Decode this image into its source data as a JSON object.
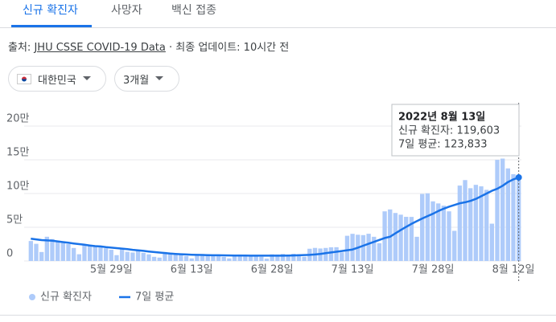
{
  "tabs": [
    "신규 확진자",
    "사망자",
    "백신 접종"
  ],
  "source": {
    "label": "출처:",
    "link": "JHU CSSE COVID-19 Data",
    "updated": "· 최종 업데이트: 10시간 전"
  },
  "filters": [
    "대한민국",
    "3개월"
  ],
  "tooltip": {
    "date": "2022년 8월 13일",
    "lines": [
      "신규 확진자: 119,603",
      "7일 평균: 123,833"
    ]
  },
  "chart_data": {
    "type": "bar_line",
    "categories": [
      null,
      null,
      null,
      null,
      null,
      null,
      null,
      null,
      null,
      null,
      null,
      null,
      null,
      null,
      null,
      "5월 29일",
      null,
      null,
      null,
      null,
      null,
      null,
      null,
      null,
      null,
      null,
      null,
      null,
      null,
      null,
      "6월 13일",
      null,
      null,
      null,
      null,
      null,
      null,
      null,
      null,
      null,
      null,
      null,
      null,
      null,
      null,
      "6월 28일",
      null,
      null,
      null,
      null,
      null,
      null,
      null,
      null,
      null,
      null,
      null,
      null,
      null,
      null,
      "7월 13일",
      null,
      null,
      null,
      null,
      null,
      null,
      null,
      null,
      null,
      null,
      null,
      null,
      null,
      null,
      "7월 28일",
      null,
      null,
      null,
      null,
      null,
      null,
      null,
      null,
      null,
      null,
      null,
      null,
      null,
      null,
      "8월 12일",
      null
    ],
    "series": [
      {
        "name": "신규 확진자",
        "color": "#aecbfa",
        "values": [
          29581,
          25434,
          13296,
          35906,
          32451,
          29973,
          26714,
          25125,
          19293,
          9975,
          23956,
          23945,
          22241,
          20430,
          18816,
          16580,
          8643,
          18799,
          13635,
          12542,
          16584,
          12046,
          9828,
          6171,
          5022,
          13358,
          12165,
          10600,
          9311,
          7382,
          3823,
          9432,
          9302,
          8440,
          7993,
          7198,
          6068,
          3801,
          9305,
          9591,
          8979,
          7497,
          6765,
          6242,
          3423,
          9896,
          9595,
          10463,
          9528,
          10715,
          10059,
          6249,
          18147,
          19371,
          18511,
          19323,
          20286,
          20410,
          12693,
          37360,
          40266,
          38882,
          38370,
          40342,
          35883,
          26299,
          73582,
          76402,
          71170,
          68632,
          65433,
          65341,
          35883,
          99327,
          100285,
          88384,
          85320,
          82002,
          73589,
          44689,
          111789,
          119922,
          107894,
          112901,
          110666,
          105507,
          55292,
          149897,
          151792,
          137241,
          128714,
          119603
        ]
      },
      {
        "name": "7일 평균",
        "color": "#1a73e8",
        "values": [
          33000,
          32000,
          31000,
          30500,
          30000,
          29000,
          28000,
          27000,
          26000,
          25000,
          24000,
          23000,
          22000,
          21500,
          20500,
          19800,
          19000,
          18300,
          17500,
          16500,
          15800,
          15000,
          14000,
          13200,
          12500,
          11800,
          11000,
          10500,
          10000,
          9600,
          9300,
          9100,
          8900,
          8700,
          8500,
          8400,
          8300,
          8200,
          8100,
          8000,
          8000,
          7900,
          7900,
          7800,
          7800,
          7800,
          7800,
          7900,
          8000,
          8200,
          8500,
          8800,
          9100,
          9600,
          10500,
          11500,
          12600,
          13700,
          14800,
          15900,
          17000,
          19800,
          22600,
          25500,
          28300,
          31200,
          34000,
          36000,
          41000,
          46000,
          50500,
          55000,
          59000,
          63000,
          66500,
          70000,
          74000,
          77500,
          80500,
          83000,
          85500,
          87000,
          89000,
          92000,
          96000,
          100000,
          104000,
          107000,
          111500,
          117000,
          121000,
          123833
        ]
      }
    ],
    "ylim": [
      0,
      200000
    ],
    "yticks": [
      0,
      {
        "value": 50000,
        "label": "5만"
      },
      {
        "value": 100000,
        "label": "10만"
      },
      {
        "value": 150000,
        "label": "15만"
      },
      {
        "value": 200000,
        "label": "20만"
      }
    ],
    "grid": true
  }
}
